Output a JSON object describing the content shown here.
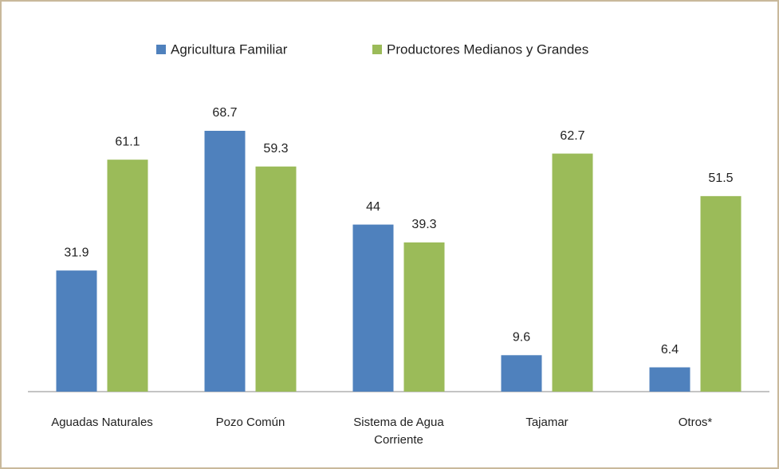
{
  "chart_data": {
    "type": "bar",
    "categories": [
      "Aguadas Naturales",
      "Pozo Común",
      "Sistema de Agua Corriente",
      "Tajamar",
      "Otros*"
    ],
    "series": [
      {
        "name": "Agricultura Familiar",
        "color": "#4f81bd",
        "values": [
          31.9,
          68.7,
          44,
          9.6,
          6.4
        ]
      },
      {
        "name": "Productores Medianos y Grandes",
        "color": "#9bbb59",
        "values": [
          61.1,
          59.3,
          39.3,
          62.7,
          51.5
        ]
      }
    ],
    "legend": "top"
  }
}
